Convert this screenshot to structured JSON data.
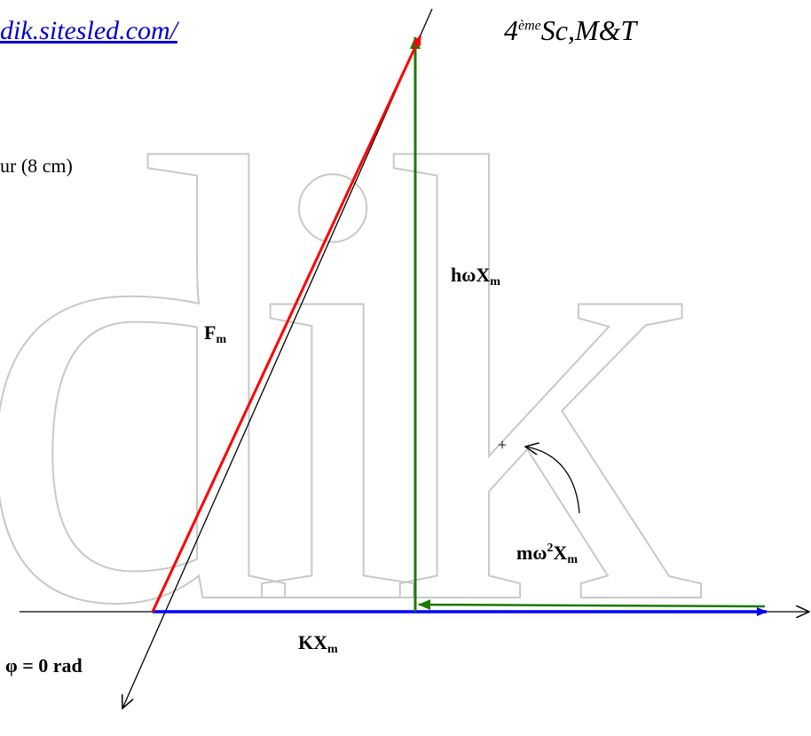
{
  "watermark": "dik",
  "header": {
    "link_text": "dik.sitesled.com/",
    "class_main": "4",
    "class_sup": "ème",
    "class_rest": "Sc,M&T"
  },
  "scale_note": "ur (8 cm)",
  "labels": {
    "fm": {
      "main": "F",
      "sub": "m"
    },
    "hwxm": {
      "main": "hωX",
      "sub": "m"
    },
    "mw2xm": {
      "pre": "mω",
      "sup": "2",
      "post": "X",
      "sub": "m"
    },
    "kxm": {
      "main": "KX",
      "sub": "m"
    },
    "phi": "φ = 0 rad",
    "sign": "+"
  },
  "colors": {
    "red": "#ff0000",
    "green": "#1a7a00",
    "blue": "#0000ff",
    "black": "#000000",
    "watermark_stroke": "#c8c8c8"
  }
}
